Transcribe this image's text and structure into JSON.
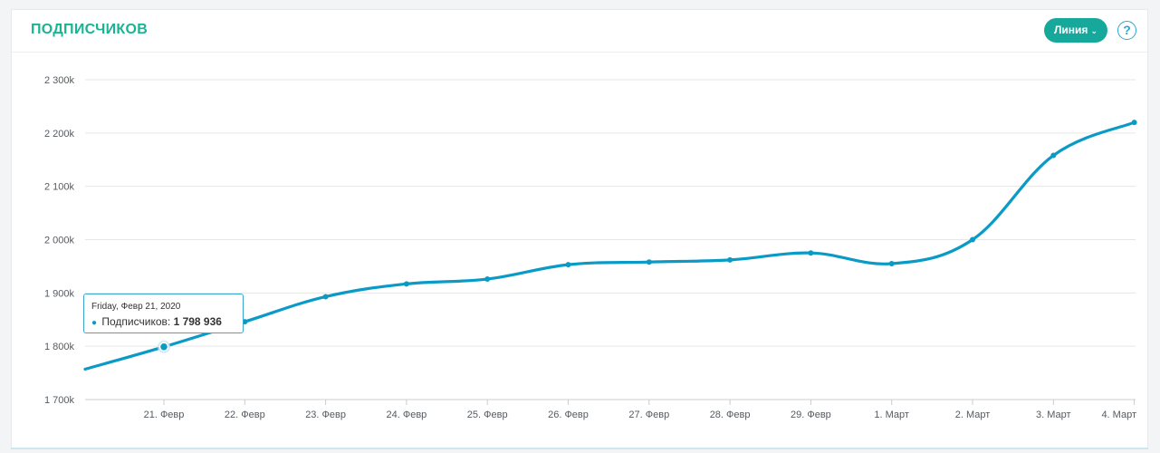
{
  "header": {
    "title": "ПОДПИСЧИКОВ",
    "type_button_label": "Линия",
    "type_button_chevron": "⌄",
    "help_label": "?"
  },
  "tooltip": {
    "date": "Friday, Февр 21, 2020",
    "series_label": "Подписчиков:",
    "value_text": "1 798 936"
  },
  "colors": {
    "accent": "#1ab394",
    "button": "#16a89b",
    "line": "#0a9ac6",
    "help": "#29a7d3"
  },
  "chart_data": {
    "type": "line",
    "title": "ПОДПИСЧИКОВ",
    "xlabel": "",
    "ylabel": "",
    "ylim": [
      1700000,
      2300000
    ],
    "yticks": [
      1700000,
      1800000,
      1900000,
      2000000,
      2100000,
      2200000,
      2300000
    ],
    "ytick_labels": [
      "1 700k",
      "1 800k",
      "1 900k",
      "2 000k",
      "2 100k",
      "2 200k",
      "2 300k"
    ],
    "grid": true,
    "legend": "none",
    "categories": [
      "21. Февр",
      "22. Февр",
      "23. Февр",
      "24. Февр",
      "25. Февр",
      "26. Февр",
      "27. Февр",
      "28. Февр",
      "29. Февр",
      "1. Март",
      "2. Март",
      "3. Март",
      "4. Март"
    ],
    "series": [
      {
        "values": [
          1798936,
          1846000,
          1893000,
          1917000,
          1926000,
          1953000,
          1958000,
          1962000,
          1975000,
          1955000,
          2000000,
          2158000,
          2220000
        ],
        "start_value": 1757000
      }
    ]
  }
}
